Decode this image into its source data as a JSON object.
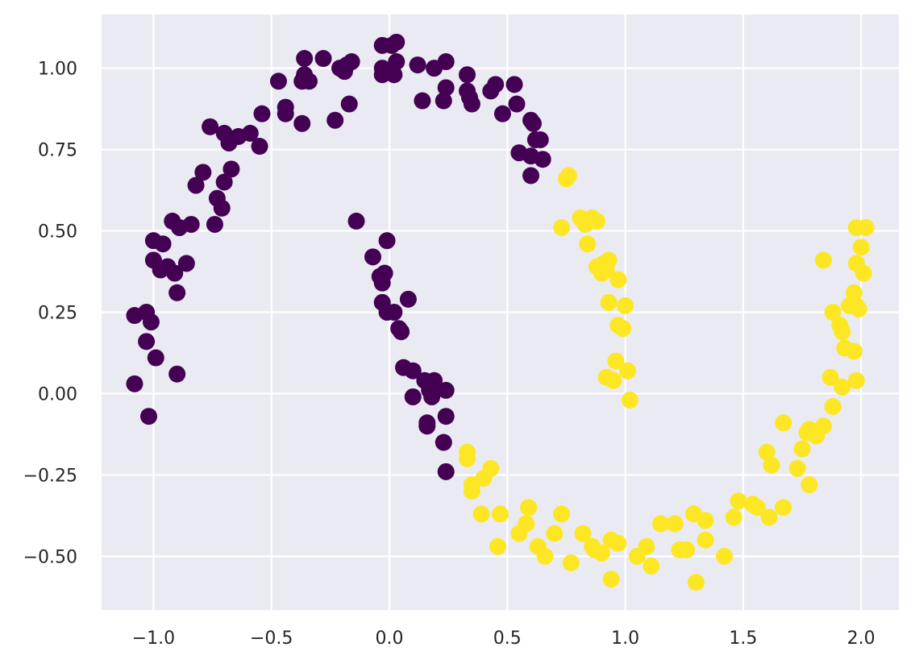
{
  "chart_data": {
    "type": "scatter",
    "title": "",
    "xlabel": "",
    "ylabel": "",
    "xlim": [
      -1.22,
      2.16
    ],
    "ylim": [
      -0.665,
      1.165
    ],
    "x_ticks": [
      {
        "value": -1.0,
        "label": "−1.0"
      },
      {
        "value": -0.5,
        "label": "−0.5"
      },
      {
        "value": 0.0,
        "label": "0.0"
      },
      {
        "value": 0.5,
        "label": "0.5"
      },
      {
        "value": 1.0,
        "label": "1.0"
      },
      {
        "value": 1.5,
        "label": "1.5"
      },
      {
        "value": 2.0,
        "label": "2.0"
      }
    ],
    "y_ticks": [
      {
        "value": -0.5,
        "label": "−0.50"
      },
      {
        "value": -0.25,
        "label": "−0.25"
      },
      {
        "value": 0.0,
        "label": "0.00"
      },
      {
        "value": 0.25,
        "label": "0.25"
      },
      {
        "value": 0.5,
        "label": "0.50"
      },
      {
        "value": 0.75,
        "label": "0.75"
      },
      {
        "value": 1.0,
        "label": "1.00"
      }
    ],
    "grid": true,
    "legend": "none",
    "background_color": "#eaeaf2",
    "series": [
      {
        "color": "#440154",
        "points": [
          [
            -1.08,
            0.24
          ],
          [
            -1.03,
            0.25
          ],
          [
            -1.01,
            0.22
          ],
          [
            -1.03,
            0.16
          ],
          [
            -0.99,
            0.11
          ],
          [
            -1.08,
            0.03
          ],
          [
            -1.02,
            -0.07
          ],
          [
            -0.9,
            0.06
          ],
          [
            -1.0,
            0.47
          ],
          [
            -1.0,
            0.41
          ],
          [
            -0.96,
            0.46
          ],
          [
            -0.97,
            0.38
          ],
          [
            -0.94,
            0.39
          ],
          [
            -0.91,
            0.37
          ],
          [
            -0.9,
            0.31
          ],
          [
            -0.86,
            0.4
          ],
          [
            -0.92,
            0.53
          ],
          [
            -0.89,
            0.51
          ],
          [
            -0.84,
            0.52
          ],
          [
            -0.82,
            0.64
          ],
          [
            -0.79,
            0.68
          ],
          [
            -0.73,
            0.6
          ],
          [
            -0.71,
            0.57
          ],
          [
            -0.74,
            0.52
          ],
          [
            -0.7,
            0.65
          ],
          [
            -0.67,
            0.69
          ],
          [
            -0.76,
            0.82
          ],
          [
            -0.7,
            0.8
          ],
          [
            -0.68,
            0.77
          ],
          [
            -0.64,
            0.79
          ],
          [
            -0.59,
            0.8
          ],
          [
            -0.55,
            0.76
          ],
          [
            -0.54,
            0.86
          ],
          [
            -0.47,
            0.96
          ],
          [
            -0.44,
            0.88
          ],
          [
            -0.44,
            0.86
          ],
          [
            -0.37,
            0.96
          ],
          [
            -0.36,
            0.98
          ],
          [
            -0.34,
            0.96
          ],
          [
            -0.37,
            0.83
          ],
          [
            -0.36,
            1.03
          ],
          [
            -0.28,
            1.03
          ],
          [
            -0.21,
            1.0
          ],
          [
            -0.19,
            0.99
          ],
          [
            -0.18,
            1.01
          ],
          [
            -0.16,
            1.02
          ],
          [
            -0.23,
            0.84
          ],
          [
            -0.17,
            0.89
          ],
          [
            -0.03,
            1.0
          ],
          [
            -0.03,
            1.07
          ],
          [
            0.01,
            1.07
          ],
          [
            0.03,
            1.08
          ],
          [
            0.03,
            1.02
          ],
          [
            0.02,
            0.98
          ],
          [
            -0.03,
            0.98
          ],
          [
            0.12,
            1.01
          ],
          [
            0.19,
            1.0
          ],
          [
            0.24,
            1.02
          ],
          [
            0.24,
            0.94
          ],
          [
            0.14,
            0.9
          ],
          [
            0.23,
            0.9
          ],
          [
            0.33,
            0.98
          ],
          [
            0.33,
            0.93
          ],
          [
            0.34,
            0.91
          ],
          [
            0.35,
            0.89
          ],
          [
            0.43,
            0.93
          ],
          [
            0.45,
            0.95
          ],
          [
            0.53,
            0.95
          ],
          [
            0.48,
            0.86
          ],
          [
            0.54,
            0.89
          ],
          [
            0.55,
            0.74
          ],
          [
            0.6,
            0.73
          ],
          [
            0.6,
            0.67
          ],
          [
            0.6,
            0.84
          ],
          [
            0.61,
            0.83
          ],
          [
            0.62,
            0.78
          ],
          [
            0.64,
            0.78
          ],
          [
            0.65,
            0.72
          ],
          [
            -0.14,
            0.53
          ],
          [
            -0.07,
            0.42
          ],
          [
            -0.01,
            0.47
          ],
          [
            -0.04,
            0.36
          ],
          [
            -0.03,
            0.34
          ],
          [
            -0.02,
            0.37
          ],
          [
            -0.03,
            0.28
          ],
          [
            -0.01,
            0.25
          ],
          [
            0.02,
            0.25
          ],
          [
            0.04,
            0.2
          ],
          [
            0.05,
            0.19
          ],
          [
            0.08,
            0.29
          ],
          [
            0.06,
            0.08
          ],
          [
            0.1,
            0.07
          ],
          [
            0.15,
            0.04
          ],
          [
            0.19,
            0.04
          ],
          [
            0.17,
            0.03
          ],
          [
            0.24,
            0.01
          ],
          [
            0.17,
            0.01
          ],
          [
            0.1,
            -0.01
          ],
          [
            0.18,
            -0.01
          ],
          [
            0.16,
            -0.09
          ],
          [
            0.16,
            -0.1
          ],
          [
            0.24,
            -0.07
          ],
          [
            0.23,
            -0.15
          ],
          [
            0.24,
            -0.24
          ]
        ]
      },
      {
        "color": "#fde725",
        "points": [
          [
            0.75,
            0.66
          ],
          [
            0.76,
            0.67
          ],
          [
            0.73,
            0.51
          ],
          [
            0.81,
            0.54
          ],
          [
            0.83,
            0.52
          ],
          [
            0.86,
            0.54
          ],
          [
            0.88,
            0.53
          ],
          [
            0.84,
            0.46
          ],
          [
            0.88,
            0.39
          ],
          [
            0.9,
            0.37
          ],
          [
            0.91,
            0.4
          ],
          [
            0.93,
            0.41
          ],
          [
            0.92,
            0.38
          ],
          [
            0.93,
            0.28
          ],
          [
            0.97,
            0.35
          ],
          [
            1.0,
            0.27
          ],
          [
            0.97,
            0.21
          ],
          [
            0.99,
            0.2
          ],
          [
            0.96,
            0.1
          ],
          [
            0.92,
            0.05
          ],
          [
            0.95,
            0.04
          ],
          [
            1.01,
            0.07
          ],
          [
            1.02,
            -0.02
          ],
          [
            0.33,
            -0.2
          ],
          [
            0.33,
            -0.18
          ],
          [
            0.35,
            -0.3
          ],
          [
            0.35,
            -0.28
          ],
          [
            0.4,
            -0.26
          ],
          [
            0.43,
            -0.23
          ],
          [
            0.39,
            -0.37
          ],
          [
            0.47,
            -0.37
          ],
          [
            0.46,
            -0.47
          ],
          [
            0.55,
            -0.43
          ],
          [
            0.58,
            -0.4
          ],
          [
            0.59,
            -0.35
          ],
          [
            0.63,
            -0.47
          ],
          [
            0.66,
            -0.5
          ],
          [
            0.7,
            -0.43
          ],
          [
            0.73,
            -0.37
          ],
          [
            0.77,
            -0.52
          ],
          [
            0.82,
            -0.43
          ],
          [
            0.86,
            -0.47
          ],
          [
            0.87,
            -0.48
          ],
          [
            0.9,
            -0.49
          ],
          [
            0.94,
            -0.45
          ],
          [
            0.97,
            -0.46
          ],
          [
            0.94,
            -0.57
          ],
          [
            1.05,
            -0.5
          ],
          [
            1.09,
            -0.47
          ],
          [
            1.11,
            -0.53
          ],
          [
            1.15,
            -0.4
          ],
          [
            1.21,
            -0.4
          ],
          [
            1.23,
            -0.48
          ],
          [
            1.26,
            -0.48
          ],
          [
            1.29,
            -0.37
          ],
          [
            1.3,
            -0.58
          ],
          [
            1.34,
            -0.39
          ],
          [
            1.34,
            -0.45
          ],
          [
            1.42,
            -0.5
          ],
          [
            1.46,
            -0.38
          ],
          [
            1.48,
            -0.33
          ],
          [
            1.54,
            -0.34
          ],
          [
            1.56,
            -0.35
          ],
          [
            1.61,
            -0.38
          ],
          [
            1.67,
            -0.35
          ],
          [
            1.6,
            -0.18
          ],
          [
            1.62,
            -0.22
          ],
          [
            1.67,
            -0.09
          ],
          [
            1.73,
            -0.23
          ],
          [
            1.75,
            -0.17
          ],
          [
            1.77,
            -0.12
          ],
          [
            1.78,
            -0.11
          ],
          [
            1.78,
            -0.28
          ],
          [
            1.81,
            -0.13
          ],
          [
            1.84,
            -0.1
          ],
          [
            1.88,
            -0.04
          ],
          [
            1.87,
            0.05
          ],
          [
            1.92,
            0.02
          ],
          [
            1.98,
            0.04
          ],
          [
            1.93,
            0.14
          ],
          [
            1.97,
            0.13
          ],
          [
            1.88,
            0.25
          ],
          [
            1.91,
            0.21
          ],
          [
            1.92,
            0.19
          ],
          [
            1.95,
            0.27
          ],
          [
            1.97,
            0.31
          ],
          [
            1.98,
            0.27
          ],
          [
            1.99,
            0.26
          ],
          [
            1.98,
            0.4
          ],
          [
            2.01,
            0.37
          ],
          [
            2.0,
            0.45
          ],
          [
            1.98,
            0.51
          ],
          [
            2.02,
            0.51
          ],
          [
            1.84,
            0.41
          ]
        ]
      }
    ]
  }
}
